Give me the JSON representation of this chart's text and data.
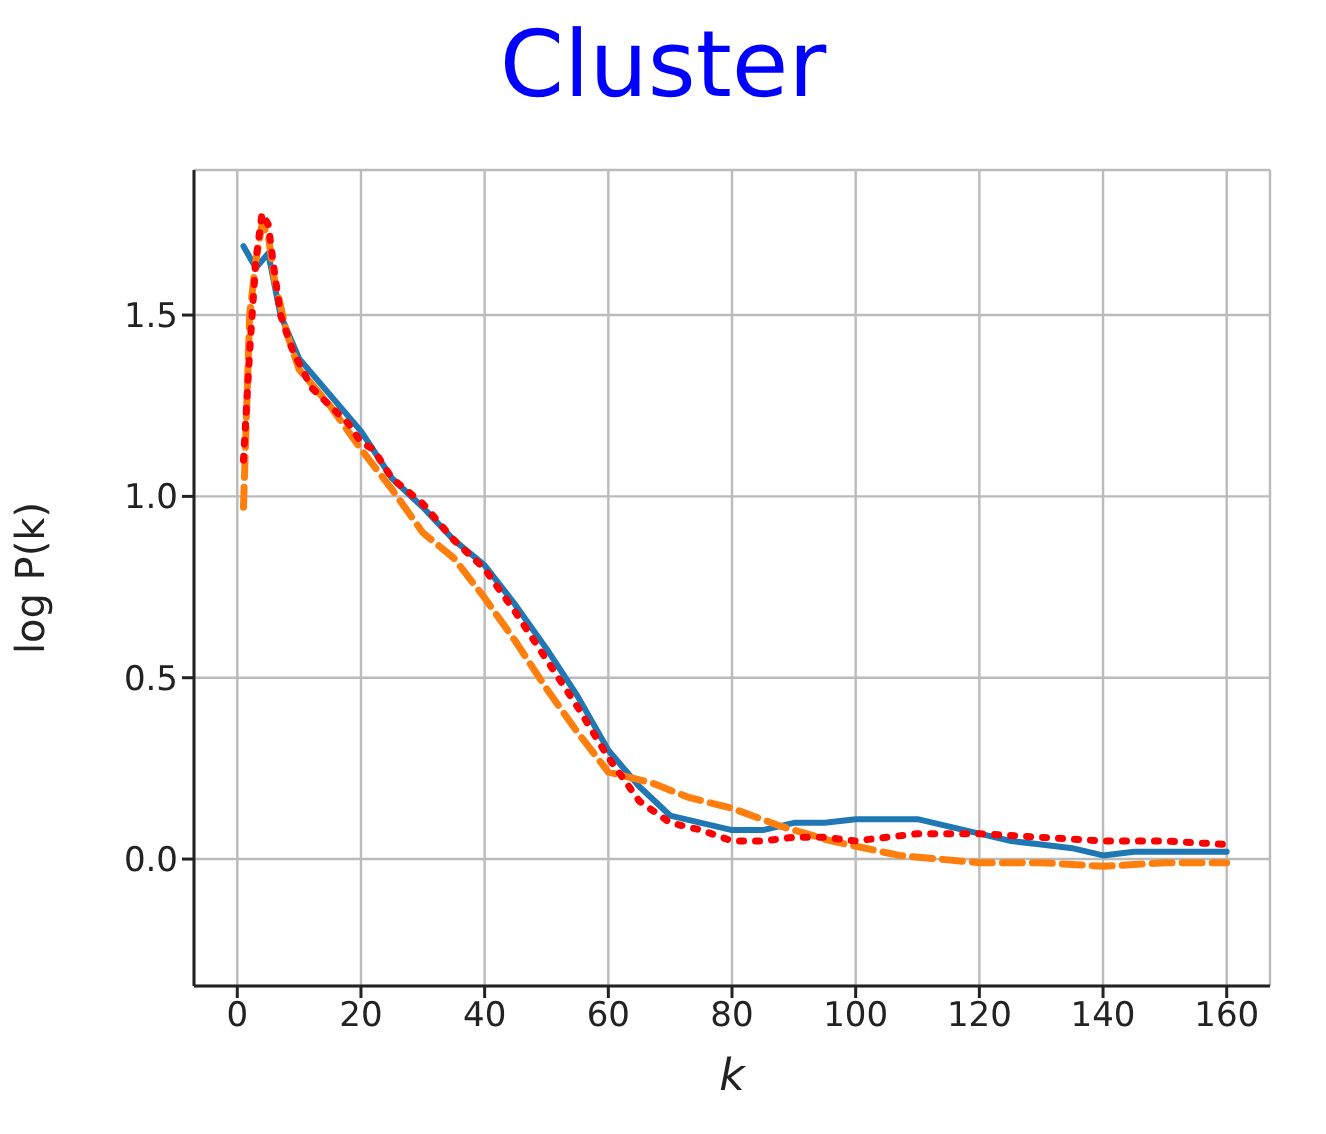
{
  "chart_data": {
    "type": "line",
    "title": "Cluster",
    "xlabel": "k",
    "ylabel": "log P(k)",
    "xlim": [
      -7,
      167
    ],
    "xticks": [
      0,
      20,
      40,
      60,
      80,
      100,
      120,
      140,
      160
    ],
    "ylim": [
      -0.35,
      1.9
    ],
    "yticks": [
      {
        "value": 0,
        "label": "0.0"
      },
      {
        "value": 0.5,
        "label": "0.5"
      },
      {
        "value": 1,
        "label": "1.0"
      },
      {
        "value": 1.5,
        "label": "1.5"
      }
    ],
    "grid": true,
    "series": [
      {
        "color": "#1f77b4",
        "line_style": "solid",
        "x": [
          1,
          3,
          5,
          7,
          10,
          15,
          20,
          25,
          30,
          35,
          40,
          45,
          50,
          55,
          60,
          65,
          70,
          75,
          80,
          85,
          90,
          95,
          100,
          105,
          110,
          115,
          120,
          125,
          130,
          135,
          140,
          145,
          150,
          155,
          160
        ],
        "values": [
          1.69,
          1.63,
          1.67,
          1.5,
          1.38,
          1.28,
          1.18,
          1.05,
          0.97,
          0.88,
          0.81,
          0.7,
          0.58,
          0.45,
          0.3,
          0.2,
          0.12,
          0.1,
          0.08,
          0.08,
          0.1,
          0.1,
          0.11,
          0.11,
          0.11,
          0.09,
          0.07,
          0.05,
          0.04,
          0.03,
          0.01,
          0.02,
          0.02,
          0.02,
          0.02
        ]
      },
      {
        "color": "#ff7f0e",
        "line_style": "dashed",
        "x": [
          1,
          2,
          3,
          4,
          5,
          6,
          8,
          10,
          15,
          20,
          25,
          30,
          35,
          40,
          45,
          50,
          55,
          60,
          67,
          73,
          80,
          88,
          96,
          107,
          120,
          130,
          140,
          150,
          160
        ],
        "values": [
          0.97,
          1.5,
          1.65,
          1.75,
          1.72,
          1.6,
          1.45,
          1.35,
          1.25,
          1.13,
          1.02,
          0.9,
          0.83,
          0.72,
          0.6,
          0.47,
          0.35,
          0.24,
          0.21,
          0.17,
          0.14,
          0.09,
          0.05,
          0.01,
          -0.01,
          -0.01,
          -0.02,
          -0.01,
          -0.01
        ]
      },
      {
        "color": "#ff0000",
        "line_style": "dotted",
        "x": [
          1,
          2,
          3,
          4,
          5,
          6,
          7,
          9,
          12,
          15,
          18,
          20,
          22,
          25,
          30,
          35,
          40,
          45,
          50,
          55,
          60,
          65,
          70,
          75,
          80,
          85,
          90,
          95,
          100,
          105,
          110,
          120,
          130,
          140,
          150,
          160
        ],
        "values": [
          1.1,
          1.4,
          1.65,
          1.78,
          1.75,
          1.62,
          1.5,
          1.4,
          1.3,
          1.25,
          1.2,
          1.15,
          1.13,
          1.05,
          0.98,
          0.88,
          0.8,
          0.68,
          0.55,
          0.42,
          0.28,
          0.16,
          0.1,
          0.08,
          0.05,
          0.05,
          0.06,
          0.06,
          0.05,
          0.06,
          0.07,
          0.07,
          0.06,
          0.05,
          0.05,
          0.04
        ]
      }
    ]
  }
}
